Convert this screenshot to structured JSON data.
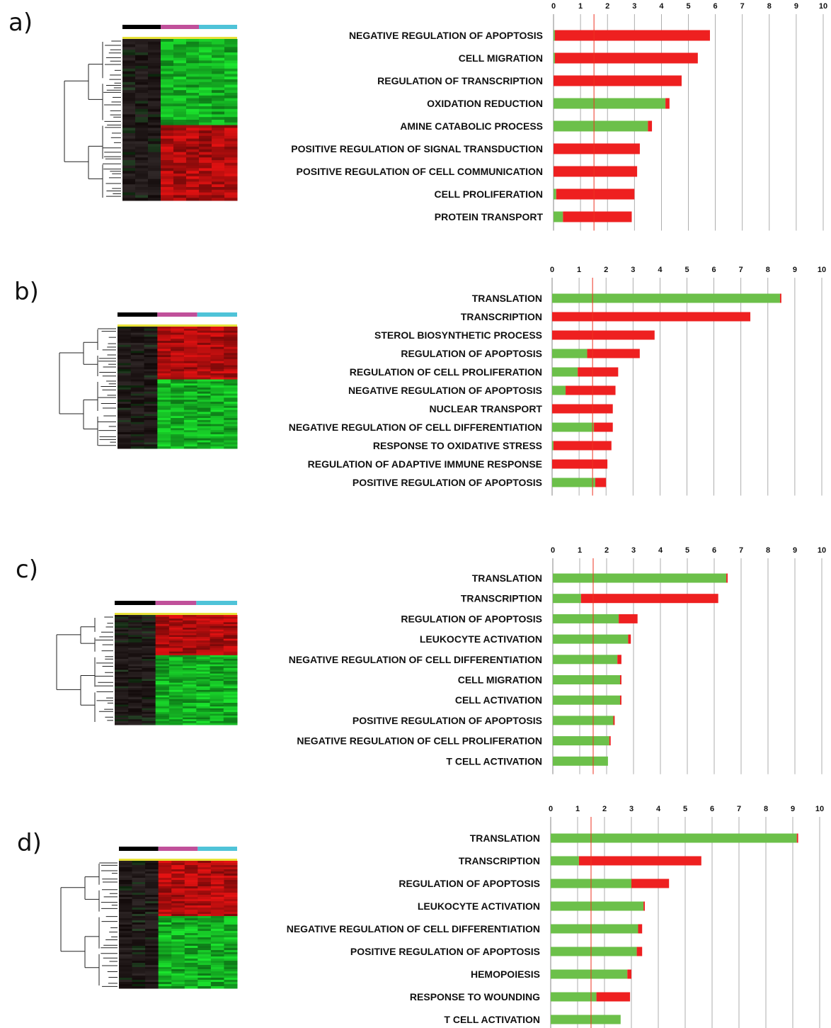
{
  "colors": {
    "green": "#6cc04a",
    "red": "#ee2020",
    "threshold": "#ee3322",
    "grid": "#9a9a9a",
    "bar_black": "#000000",
    "bar_magenta": "#c0509a",
    "bar_cyan": "#4fc3d8"
  },
  "chart_data": [
    {
      "panel_label": "a)",
      "type": "bar",
      "orientation": "horizontal",
      "stacked": true,
      "xlim": [
        0,
        10
      ],
      "ticks": [
        "0",
        "1",
        "2",
        "3",
        "4",
        "5",
        "6",
        "7",
        "8",
        "9",
        "10"
      ],
      "threshold": 1.5,
      "grid": true,
      "categories": [
        "NEGATIVE REGULATION OF APOPTOSIS",
        "CELL MIGRATION",
        "REGULATION OF TRANSCRIPTION",
        "OXIDATION REDUCTION",
        "AMINE CATABOLIC PROCESS",
        "POSITIVE REGULATION OF SIGNAL TRANSDUCTION",
        "POSITIVE REGULATION OF CELL COMMUNICATION",
        "CELL PROLIFERATION",
        "PROTEIN TRANSPORT"
      ],
      "series": [
        {
          "color": "green",
          "values": [
            0.05,
            0.05,
            0.0,
            4.15,
            3.5,
            0.0,
            0.0,
            0.1,
            0.35
          ]
        },
        {
          "color": "red",
          "values": [
            5.75,
            5.3,
            4.75,
            0.15,
            0.15,
            3.2,
            3.1,
            2.9,
            2.55
          ]
        }
      ]
    },
    {
      "panel_label": "b)",
      "type": "bar",
      "orientation": "horizontal",
      "stacked": true,
      "xlim": [
        0,
        10
      ],
      "ticks": [
        "0",
        "1",
        "2",
        "3",
        "4",
        "5",
        "6",
        "7",
        "8",
        "9",
        "10"
      ],
      "threshold": 1.5,
      "grid": true,
      "categories": [
        "TRANSLATION",
        "TRANSCRIPTION",
        "STEROL BIOSYNTHETIC PROCESS",
        "REGULATION OF APOPTOSIS",
        "REGULATION OF CELL PROLIFERATION",
        "NEGATIVE REGULATION OF APOPTOSIS",
        "NUCLEAR TRANSPORT",
        "NEGATIVE REGULATION OF CELL DIFFERENTIATION",
        "RESPONSE TO OXIDATIVE STRESS",
        "REGULATION OF ADAPTIVE IMMUNE RESPONSE",
        "POSITIVE REGULATION OF APOPTOSIS"
      ],
      "series": [
        {
          "color": "green",
          "values": [
            8.45,
            0.0,
            0.0,
            1.3,
            0.95,
            0.5,
            0.0,
            1.55,
            0.05,
            0.0,
            1.6
          ]
        },
        {
          "color": "red",
          "values": [
            0.05,
            7.35,
            3.8,
            1.95,
            1.5,
            1.85,
            2.25,
            0.7,
            2.15,
            2.05,
            0.4
          ]
        }
      ]
    },
    {
      "panel_label": "c)",
      "type": "bar",
      "orientation": "horizontal",
      "stacked": true,
      "xlim": [
        0,
        10
      ],
      "ticks": [
        "0",
        "1",
        "2",
        "3",
        "4",
        "5",
        "6",
        "7",
        "8",
        "9",
        "10"
      ],
      "threshold": 1.5,
      "grid": true,
      "categories": [
        "TRANSLATION",
        "TRANSCRIPTION",
        "REGULATION OF APOPTOSIS",
        "LEUKOCYTE ACTIVATION",
        "NEGATIVE REGULATION OF CELL DIFFERENTIATION",
        "CELL MIGRATION",
        "CELL ACTIVATION",
        "POSITIVE REGULATION OF APOPTOSIS",
        "NEGATIVE REGULATION OF CELL PROLIFERATION",
        "T CELL ACTIVATION"
      ],
      "series": [
        {
          "color": "green",
          "values": [
            6.45,
            1.05,
            2.45,
            2.8,
            2.4,
            2.5,
            2.5,
            2.25,
            2.1,
            2.05
          ]
        },
        {
          "color": "red",
          "values": [
            0.05,
            5.1,
            0.7,
            0.1,
            0.15,
            0.05,
            0.05,
            0.05,
            0.05,
            0.0
          ]
        }
      ]
    },
    {
      "panel_label": "d)",
      "type": "bar",
      "orientation": "horizontal",
      "stacked": true,
      "xlim": [
        0,
        10
      ],
      "ticks": [
        "0",
        "1",
        "2",
        "3",
        "4",
        "5",
        "6",
        "7",
        "8",
        "9",
        "10"
      ],
      "threshold": 1.5,
      "grid": true,
      "categories": [
        "TRANSLATION",
        "TRANSCRIPTION",
        "REGULATION OF APOPTOSIS",
        "LEUKOCYTE ACTIVATION",
        "NEGATIVE REGULATION OF CELL DIFFERENTIATION",
        "POSITIVE REGULATION OF APOPTOSIS",
        "HEMOPOIESIS",
        "RESPONSE TO WOUNDING",
        "T CELL ACTIVATION"
      ],
      "series": [
        {
          "color": "green",
          "values": [
            9.15,
            1.05,
            3.0,
            3.45,
            3.25,
            3.2,
            2.85,
            1.7,
            2.6
          ]
        },
        {
          "color": "red",
          "values": [
            0.05,
            4.55,
            1.4,
            0.05,
            0.15,
            0.2,
            0.15,
            1.25,
            0.0
          ]
        }
      ]
    }
  ]
}
